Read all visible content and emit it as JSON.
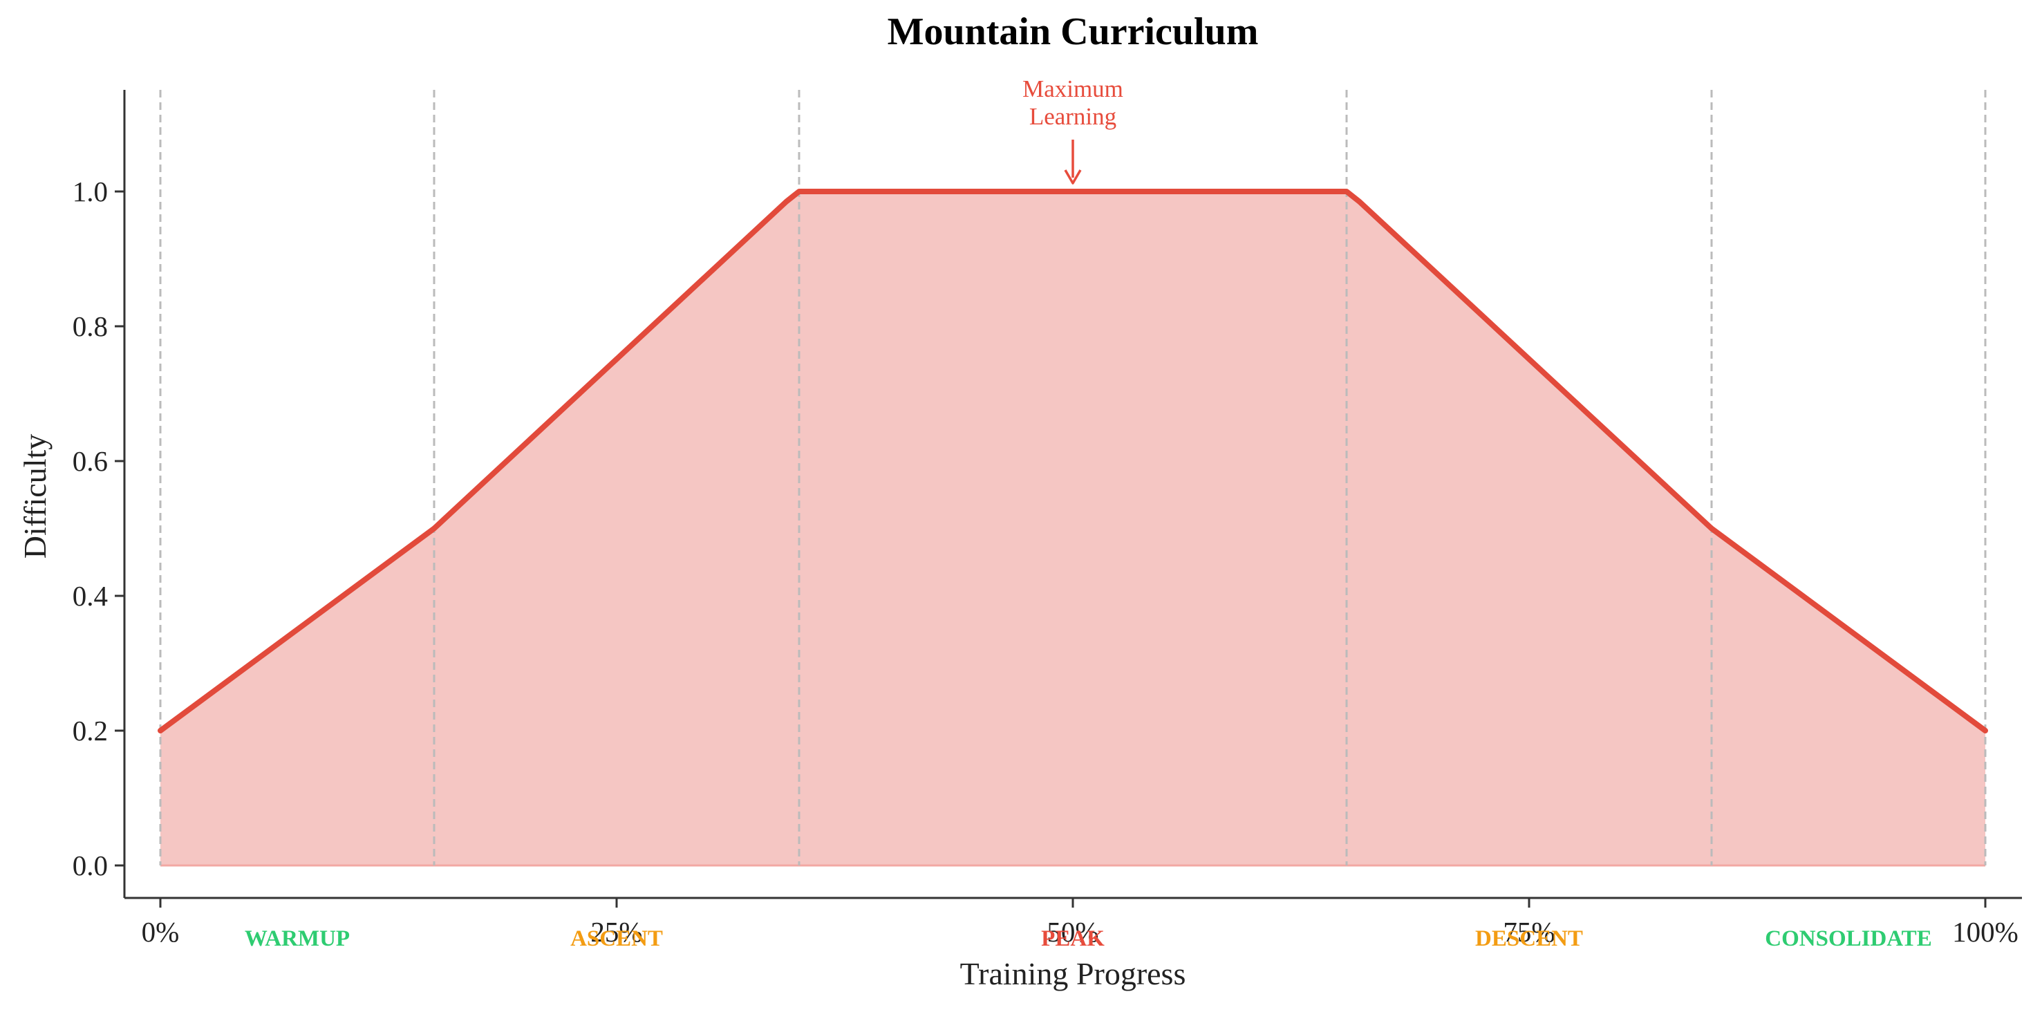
{
  "chart_data": {
    "type": "area",
    "title": "Mountain Curriculum",
    "xlabel": "Training Progress",
    "ylabel": "Difficulty",
    "xlim": [
      0,
      100
    ],
    "ylim": [
      -0.05,
      1.15
    ],
    "x_ticks": [
      {
        "value": 0,
        "label": "0%"
      },
      {
        "value": 25,
        "label": "25%"
      },
      {
        "value": 50,
        "label": "50%"
      },
      {
        "value": 75,
        "label": "75%"
      },
      {
        "value": 100,
        "label": "100%"
      }
    ],
    "y_ticks": [
      {
        "value": 0.0,
        "label": "0.0"
      },
      {
        "value": 0.2,
        "label": "0.2"
      },
      {
        "value": 0.4,
        "label": "0.4"
      },
      {
        "value": 0.6,
        "label": "0.6"
      },
      {
        "value": 0.8,
        "label": "0.8"
      },
      {
        "value": 1.0,
        "label": "1.0"
      }
    ],
    "series": [
      {
        "color": "#e24a3b",
        "fill_color": "#f5c6c3",
        "x": [
          0,
          15,
          34.3,
          35,
          50,
          65,
          65.7,
          85,
          100
        ],
        "y": [
          0.2,
          0.5,
          0.985,
          1.0,
          1.0,
          1.0,
          0.985,
          0.5,
          0.2
        ]
      }
    ],
    "phase_boundaries": [
      0,
      15,
      35,
      65,
      85,
      100
    ],
    "phases": [
      {
        "label": "WARMUP",
        "x": 7.5,
        "color": "#2ecc71"
      },
      {
        "label": "ASCENT",
        "x": 25,
        "color": "#f39c12"
      },
      {
        "label": "PEAK",
        "x": 50,
        "color": "#e74c3c"
      },
      {
        "label": "DESCENT",
        "x": 75,
        "color": "#f39c12"
      },
      {
        "label": "CONSOLIDATE",
        "x": 92.5,
        "color": "#2ecc71"
      }
    ],
    "annotation": {
      "lines": [
        "Maximum",
        "Learning"
      ],
      "x": 50,
      "y": 1.0,
      "color": "#e74c3c"
    },
    "grid": false,
    "colors": {
      "axis": "#333333",
      "boundary": "#bbbbbb"
    }
  }
}
